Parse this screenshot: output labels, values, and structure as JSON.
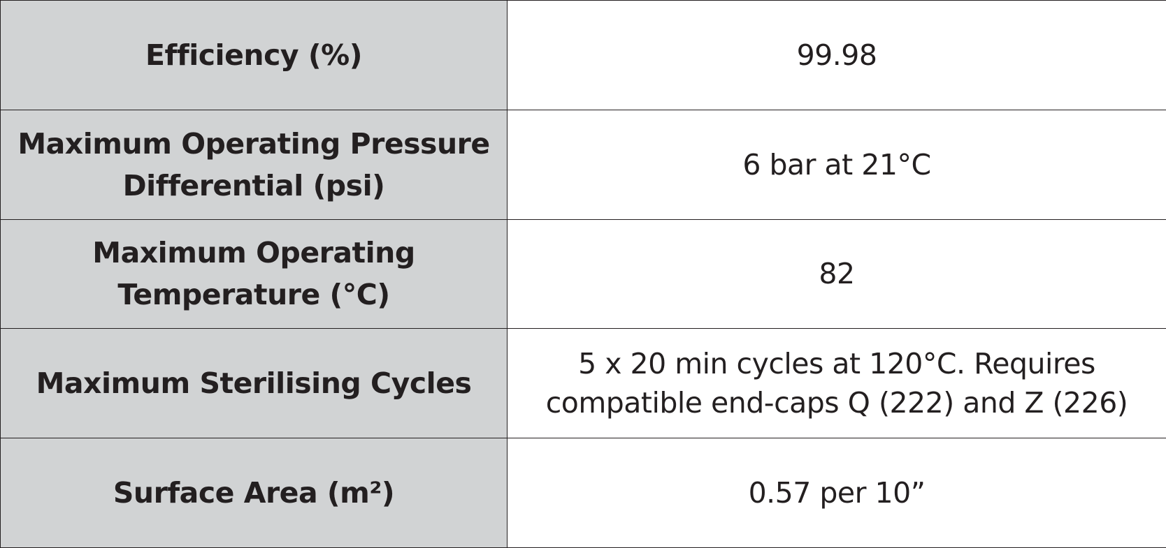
{
  "spec_table": {
    "rows": [
      {
        "label": [
          "Efficiency (%)"
        ],
        "value": [
          "99.98"
        ]
      },
      {
        "label": [
          "Maximum Operating Pressure",
          "Differential (psi)"
        ],
        "value": [
          "6 bar at 21°C"
        ]
      },
      {
        "label": [
          "Maximum Operating",
          "Temperature (°C)"
        ],
        "value": [
          "82"
        ]
      },
      {
        "label": [
          "Maximum Sterilising Cycles"
        ],
        "value": [
          "5 x 20 min cycles at 120°C. Requires",
          "compatible end-caps Q (222) and Z (226)"
        ]
      },
      {
        "label": [
          "Surface Area (m²)"
        ],
        "value": [
          "0.57 per 10”"
        ]
      }
    ]
  }
}
